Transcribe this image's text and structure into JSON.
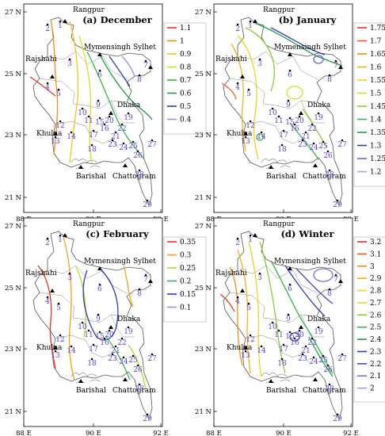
{
  "panels": [
    {
      "id": "december",
      "title": "(a) December",
      "legend": [
        {
          "v": "1.1",
          "c": "#e8321e"
        },
        {
          "v": "1",
          "c": "#f28c1c"
        },
        {
          "v": "0.9",
          "c": "#f3c51d"
        },
        {
          "v": "0.8",
          "c": "#d8df22"
        },
        {
          "v": "0.7",
          "c": "#38b54a"
        },
        {
          "v": "0.6",
          "c": "#1f9c4b"
        },
        {
          "v": "0.5",
          "c": "#2b3fb5"
        },
        {
          "v": "0.4",
          "c": "#9a8ee8"
        }
      ]
    },
    {
      "id": "january",
      "title": "(b) January",
      "legend": [
        {
          "v": "1.75",
          "c": "#e8321e"
        },
        {
          "v": "1.7",
          "c": "#ee5e1c"
        },
        {
          "v": "1.65",
          "c": "#f28c1c"
        },
        {
          "v": "1.6",
          "c": "#f3b11d"
        },
        {
          "v": "1.55",
          "c": "#f3d21d"
        },
        {
          "v": "1.5",
          "c": "#d8df22"
        },
        {
          "v": "1.45",
          "c": "#8bcb36"
        },
        {
          "v": "1.4",
          "c": "#38b54a"
        },
        {
          "v": "1.35",
          "c": "#1f9c4b"
        },
        {
          "v": "1.3",
          "c": "#2b3fb5"
        },
        {
          "v": "1.25",
          "c": "#6f62d8"
        },
        {
          "v": "1.2",
          "c": "#a99ff0"
        }
      ]
    },
    {
      "id": "february",
      "title": "(c) February",
      "legend": [
        {
          "v": "0.35",
          "c": "#e8321e"
        },
        {
          "v": "0.3",
          "c": "#f3a11d"
        },
        {
          "v": "0.25",
          "c": "#b9d62a"
        },
        {
          "v": "0.2",
          "c": "#38b54a"
        },
        {
          "v": "0.15",
          "c": "#2b3fb5"
        },
        {
          "v": "0.1",
          "c": "#9a8ee8"
        }
      ]
    },
    {
      "id": "winter",
      "title": "(d) Winter",
      "legend": [
        {
          "v": "3.2",
          "c": "#e8321e"
        },
        {
          "v": "3.1",
          "c": "#ee5e1c"
        },
        {
          "v": "3",
          "c": "#f28c1c"
        },
        {
          "v": "2.9",
          "c": "#f3b11d"
        },
        {
          "v": "2.8",
          "c": "#f3d21d"
        },
        {
          "v": "2.7",
          "c": "#d8df22"
        },
        {
          "v": "2.6",
          "c": "#8bcb36"
        },
        {
          "v": "2.5",
          "c": "#38b54a"
        },
        {
          "v": "2.4",
          "c": "#1f9c4b"
        },
        {
          "v": "2.3",
          "c": "#2b3fb5"
        },
        {
          "v": "2.2",
          "c": "#4d47c8"
        },
        {
          "v": "2.1",
          "c": "#7d70dd"
        },
        {
          "v": "2",
          "c": "#a99ff0"
        }
      ]
    }
  ],
  "axes": {
    "lat_labels": [
      "27 N",
      "25 N",
      "23 N",
      "21 N"
    ],
    "lon_labels": [
      "88 E",
      "90 E",
      "92 E"
    ]
  },
  "cities": [
    "Rangpur",
    "Rajshahi",
    "Mymensingh",
    "Sylhet",
    "Dhaka",
    "Khulna",
    "Barishal",
    "Chattogram"
  ],
  "stations": [
    "1",
    "2",
    "3",
    "4",
    "5",
    "6",
    "7",
    "8",
    "9",
    "10",
    "11",
    "12",
    "13",
    "14",
    "15",
    "16",
    "17",
    "18",
    "19",
    "20",
    "21",
    "22",
    "23",
    "24",
    "25",
    "26",
    "27",
    "28",
    "29"
  ]
}
